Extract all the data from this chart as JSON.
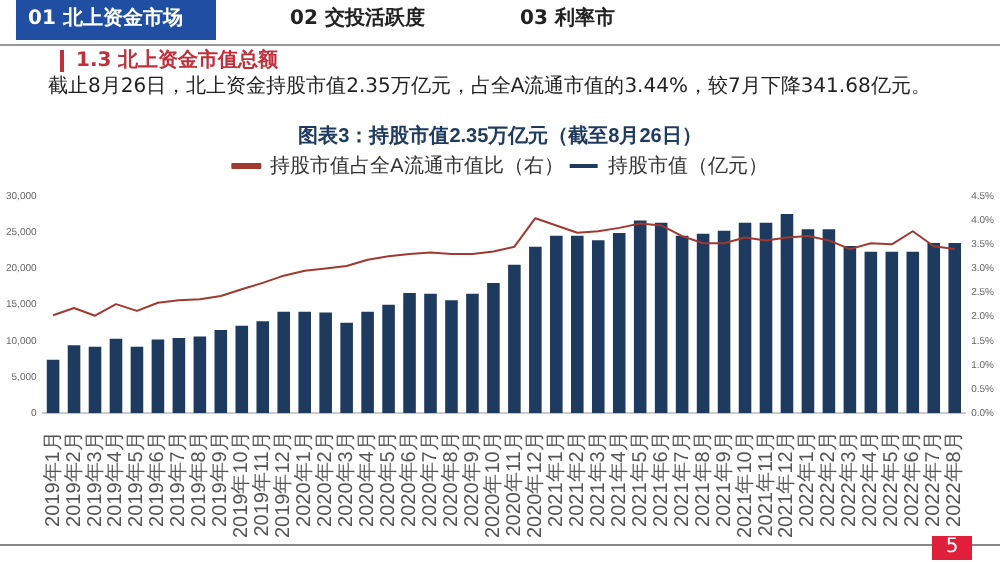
{
  "chart_data": {
    "type": "bar",
    "title": "图表3：持股市值2.35万亿元（截至8月26日）",
    "annotations": [
      "01 北上资金市场",
      "02 交投活跃度",
      "03 利率市",
      "1.3 北上资金市值总额",
      "截止8月26日，北上资金持股市值2.35万亿元，占全A流通市值的3.44%，较7月下降341.68亿元。",
      "5"
    ],
    "categories": [
      "2019年1月",
      "2019年2月",
      "2019年3月",
      "2019年4月",
      "2019年5月",
      "2019年6月",
      "2019年7月",
      "2019年8月",
      "2019年9月",
      "2019年10月",
      "2019年11月",
      "2019年12月",
      "2020年1月",
      "2020年2月",
      "2020年3月",
      "2020年4月",
      "2020年5月",
      "2020年6月",
      "2020年7月",
      "2020年8月",
      "2020年9月",
      "2020年10月",
      "2020年11月",
      "2020年12月",
      "2021年1月",
      "2021年2月",
      "2021年3月",
      "2021年4月",
      "2021年5月",
      "2021年6月",
      "2021年7月",
      "2021年8月",
      "2021年9月",
      "2021年10月",
      "2021年11月",
      "2021年12月",
      "2022年1月",
      "2022年2月",
      "2022年3月",
      "2022年4月",
      "2022年5月",
      "2022年6月",
      "2022年7月",
      "2022年8月"
    ],
    "series": [
      {
        "name": "持股市值（亿元）",
        "color": "#1f3a5f",
        "values": [
          7400,
          9400,
          9200,
          10300,
          9200,
          10200,
          10400,
          10600,
          11500,
          12100,
          12700,
          14000,
          14000,
          13900,
          12500,
          14000,
          15000,
          16600,
          16500,
          15600,
          16500,
          18000,
          20500,
          23000,
          24500,
          24500,
          23900,
          24900,
          26600,
          26300,
          24500,
          24800,
          25200,
          26300,
          26300,
          27500,
          25400,
          25400,
          23100,
          22300,
          22300,
          22300,
          23500,
          23500
        ]
      },
      {
        "name": "持股市值占全A流通市值比（右）",
        "type": "line",
        "axis": "y2",
        "color": "#a0392f",
        "values": [
          2.03,
          2.18,
          2.02,
          2.26,
          2.12,
          2.29,
          2.34,
          2.36,
          2.43,
          2.57,
          2.7,
          2.85,
          2.95,
          3.0,
          3.05,
          3.18,
          3.25,
          3.3,
          3.33,
          3.3,
          3.3,
          3.35,
          3.45,
          4.04,
          3.89,
          3.74,
          3.77,
          3.84,
          3.93,
          3.89,
          3.67,
          3.52,
          3.52,
          3.64,
          3.58,
          3.64,
          3.67,
          3.58,
          3.4,
          3.52,
          3.5,
          3.77,
          3.46,
          3.4
        ]
      }
    ],
    "ylim": [
      0,
      30000
    ],
    "yticks": [
      0,
      {
        "value": 5000,
        "label": "5,000"
      },
      {
        "value": 10000,
        "label": "10,000"
      },
      {
        "value": 15000,
        "label": "15,000"
      },
      {
        "value": 20000,
        "label": "20,000"
      },
      {
        "value": 25000,
        "label": "25,000"
      },
      {
        "value": 30000,
        "label": "30,000"
      }
    ],
    "y2lim": [
      0,
      4.5
    ],
    "y2ticks": [
      {
        "value": 0,
        "label": "0.0%"
      },
      {
        "value": 0.5,
        "label": "0.5%"
      },
      {
        "value": 1,
        "label": "1.0%"
      },
      {
        "value": 1.5,
        "label": "1.5%"
      },
      {
        "value": 2,
        "label": "2.0%"
      },
      {
        "value": 2.5,
        "label": "2.5%"
      },
      {
        "value": 3,
        "label": "3.0%"
      },
      {
        "value": 3.5,
        "label": "3.5%"
      },
      {
        "value": 4,
        "label": "4.0%"
      },
      {
        "value": 4.5,
        "label": "4.5%"
      }
    ],
    "legend": "top",
    "grid": false,
    "marker": "none",
    "line_style": "solid"
  }
}
